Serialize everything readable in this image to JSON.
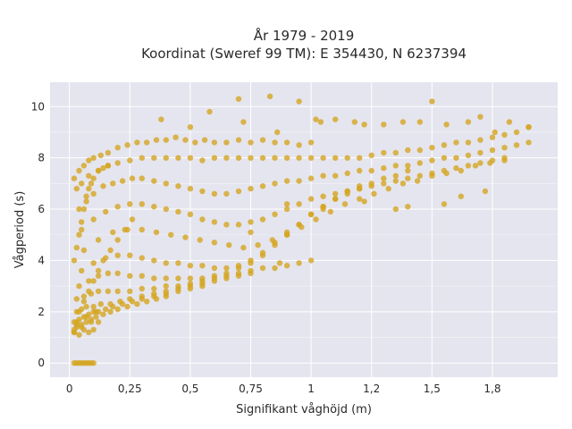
{
  "chart_data": {
    "type": "scatter",
    "title_lines": [
      "År 1979 - 2019",
      "Koordinat (Sweref 99 TM): E 354430, N 6237394"
    ],
    "xlabel": "Signifikant våghöjd (m)",
    "ylabel": "Vågperiod (s)",
    "xlim": [
      -0.08,
      2.02
    ],
    "ylim": [
      -0.55,
      10.95
    ],
    "x_ticks": [
      {
        "value": 0,
        "label": "0"
      },
      {
        "value": 0.25,
        "label": "0,25"
      },
      {
        "value": 0.5,
        "label": "0,5"
      },
      {
        "value": 0.75,
        "label": "0,75"
      },
      {
        "value": 1.0,
        "label": "1"
      },
      {
        "value": 1.25,
        "label": "1,2"
      },
      {
        "value": 1.5,
        "label": "1,5"
      },
      {
        "value": 1.75,
        "label": "1,8"
      }
    ],
    "y_ticks": [
      {
        "value": 0,
        "label": "0"
      },
      {
        "value": 2,
        "label": "2"
      },
      {
        "value": 4,
        "label": "4"
      },
      {
        "value": 6,
        "label": "6"
      },
      {
        "value": 8,
        "label": "8"
      },
      {
        "value": 10,
        "label": "10"
      }
    ],
    "grid": true,
    "marker_color": "#d4a520",
    "background_color": "#e5e5ef",
    "grid_color": "#ffffff",
    "series": [
      {
        "x": [
          0.02,
          0.03,
          0.04,
          0.05,
          0.06,
          0.07,
          0.08,
          0.09,
          0.1,
          0.02,
          0.04,
          0.06,
          0.08,
          0.1,
          0.12,
          0.03,
          0.05,
          0.07,
          0.09,
          0.11,
          0.02,
          0.04,
          0.06,
          0.08,
          0.1,
          0.13,
          0.16,
          0.2,
          0.24,
          0.28,
          0.32,
          0.36,
          0.4,
          0.44,
          0.48,
          0.52,
          0.56,
          0.6,
          0.65,
          0.7,
          0.75,
          0.8,
          0.85,
          0.9,
          0.95,
          1.0,
          0.03,
          0.05,
          0.08,
          0.12,
          0.16,
          0.2,
          0.25,
          0.3,
          0.35,
          0.4,
          0.45,
          0.5,
          0.55,
          0.6,
          0.65,
          0.7,
          0.75,
          0.8,
          0.85,
          0.9,
          0.95,
          1.0,
          1.05,
          1.1,
          1.15,
          1.2,
          1.25,
          1.3,
          1.35,
          1.4,
          1.45,
          1.5,
          1.55,
          1.6,
          1.65,
          1.7,
          1.75,
          1.8,
          1.85,
          1.9,
          0.04,
          0.07,
          0.1,
          0.14,
          0.18,
          0.22,
          0.26,
          0.3,
          0.35,
          0.4,
          0.45,
          0.5,
          0.55,
          0.6,
          0.65,
          0.7,
          0.75,
          0.8,
          0.85,
          0.9,
          0.95,
          1.0,
          1.05,
          1.1,
          1.15,
          1.2,
          1.25,
          1.3,
          1.35,
          1.4,
          1.45,
          1.5,
          1.55,
          1.6,
          1.65,
          1.7,
          1.75,
          1.8,
          1.85,
          1.9,
          0.05,
          0.1,
          0.15,
          0.2,
          0.25,
          0.3,
          0.35,
          0.4,
          0.45,
          0.5,
          0.55,
          0.6,
          0.65,
          0.7,
          0.75,
          0.8,
          0.85,
          0.9,
          0.95,
          1.0,
          1.05,
          1.1,
          1.15,
          1.2,
          1.25,
          1.3,
          1.35,
          1.4,
          1.45,
          1.5,
          1.55,
          1.6,
          1.65,
          1.7,
          1.75,
          1.8,
          0.06,
          0.12,
          0.18,
          0.24,
          0.3,
          0.36,
          0.42,
          0.48,
          0.54,
          0.6,
          0.66,
          0.72,
          0.78,
          0.84,
          0.9,
          0.96,
          1.02,
          1.08,
          1.14,
          1.2,
          1.26,
          1.32,
          1.38,
          1.44,
          1.5,
          1.56,
          1.62,
          1.68,
          1.74,
          1.8,
          0.05,
          0.1,
          0.15,
          0.2,
          0.25,
          0.3,
          0.35,
          0.4,
          0.45,
          0.5,
          0.55,
          0.6,
          0.65,
          0.7,
          0.75,
          0.8,
          0.85,
          0.9,
          0.95,
          1.0,
          1.05,
          1.1,
          1.15,
          1.2,
          1.25,
          1.3,
          1.35,
          1.4,
          0.04,
          0.08,
          0.12,
          0.16,
          0.2,
          0.25,
          0.3,
          0.35,
          0.4,
          0.45,
          0.5,
          0.55,
          0.6,
          0.65,
          0.7,
          0.75,
          0.8,
          0.85,
          0.9,
          0.95,
          1.0,
          1.05,
          1.1,
          1.15,
          1.2,
          0.03,
          0.06,
          0.09,
          0.12,
          0.16,
          0.2,
          0.25,
          0.3,
          0.35,
          0.4,
          0.45,
          0.5,
          0.55,
          0.6,
          0.65,
          0.7,
          0.75,
          0.8,
          0.85,
          0.9,
          0.95,
          1.0,
          0.03,
          0.05,
          0.07,
          0.1,
          0.13,
          0.17,
          0.21,
          0.25,
          0.3,
          0.35,
          0.4,
          0.45,
          0.5,
          0.55,
          0.6,
          0.65,
          0.7,
          0.75,
          0.02,
          0.04,
          0.06,
          0.08,
          0.1,
          0.12,
          0.15,
          0.18,
          0.22,
          0.26,
          0.3,
          0.35,
          0.4,
          0.45,
          0.5,
          0.55,
          0.02,
          0.03,
          0.05,
          0.07,
          0.09,
          0.11,
          0.14,
          0.17,
          0.2,
          0.24,
          0.28,
          0.32,
          0.36,
          0.4,
          0.02,
          0.03,
          0.04,
          0.06,
          0.08,
          0.1,
          0.12,
          0.14,
          0.17,
          0.2,
          0.23,
          0.26,
          0.02,
          0.03,
          0.04,
          0.05,
          0.06,
          0.07,
          0.08,
          0.09,
          0.1,
          0.12,
          0.14,
          0.16,
          0.38,
          0.5,
          0.58,
          0.7,
          0.72,
          0.83,
          0.86,
          0.95,
          1.02,
          1.04,
          1.1,
          1.18,
          1.22,
          1.3,
          1.38,
          1.45,
          1.5,
          1.56,
          1.65,
          1.7,
          1.76,
          1.82,
          1.9,
          0.75,
          0.87,
          0.9,
          1.05,
          1.22,
          1.35,
          1.4,
          1.55,
          1.62,
          1.72
        ],
        "y": [
          0,
          0,
          0,
          0,
          0,
          0,
          0,
          0,
          0,
          1.2,
          1.1,
          1.3,
          1.2,
          1.3,
          1.6,
          1.5,
          1.4,
          1.8,
          1.6,
          2.0,
          7.2,
          7.5,
          7.7,
          7.9,
          8.0,
          8.1,
          8.2,
          8.4,
          8.5,
          8.6,
          8.6,
          8.7,
          8.7,
          8.8,
          8.7,
          8.6,
          8.7,
          8.6,
          8.6,
          8.7,
          8.6,
          8.7,
          8.6,
          8.6,
          8.5,
          8.6,
          6.8,
          7.0,
          7.3,
          7.5,
          7.7,
          7.8,
          7.9,
          8.0,
          8.0,
          8.0,
          8.0,
          8.0,
          7.9,
          8.0,
          8.0,
          8.0,
          8.0,
          8.0,
          8.0,
          8.0,
          8.0,
          8.0,
          8.0,
          8.0,
          8.0,
          8.0,
          8.1,
          8.2,
          8.2,
          8.3,
          8.3,
          8.4,
          8.5,
          8.6,
          8.6,
          8.7,
          8.8,
          8.9,
          9.0,
          9.2,
          6.0,
          6.3,
          6.6,
          6.9,
          7.0,
          7.1,
          7.2,
          7.2,
          7.1,
          7.0,
          6.9,
          6.8,
          6.7,
          6.6,
          6.6,
          6.7,
          6.8,
          6.9,
          7.0,
          7.1,
          7.1,
          7.2,
          7.3,
          7.3,
          7.4,
          7.5,
          7.5,
          7.6,
          7.7,
          7.7,
          7.8,
          7.9,
          8.0,
          8.0,
          8.1,
          8.2,
          8.3,
          8.4,
          8.5,
          8.6,
          5.2,
          5.6,
          5.9,
          6.1,
          6.2,
          6.2,
          6.1,
          6.0,
          5.9,
          5.8,
          5.6,
          5.5,
          5.4,
          5.4,
          5.5,
          5.6,
          5.8,
          6.0,
          6.2,
          6.4,
          6.5,
          6.6,
          6.7,
          6.8,
          6.9,
          7.0,
          7.1,
          7.2,
          7.3,
          7.4,
          7.5,
          7.6,
          7.7,
          7.8,
          7.9,
          8.0,
          4.4,
          4.8,
          5.1,
          5.2,
          5.2,
          5.1,
          5.0,
          4.9,
          4.8,
          4.7,
          4.6,
          4.5,
          4.6,
          4.8,
          5.0,
          5.3,
          5.6,
          5.9,
          6.2,
          6.4,
          6.6,
          6.8,
          7.0,
          7.1,
          7.3,
          7.4,
          7.5,
          7.7,
          7.8,
          7.9,
          3.6,
          3.9,
          4.1,
          4.2,
          4.2,
          4.1,
          4.0,
          3.9,
          3.9,
          3.8,
          3.8,
          3.7,
          3.7,
          3.8,
          4.0,
          4.3,
          4.7,
          5.1,
          5.4,
          5.8,
          6.1,
          6.4,
          6.6,
          6.8,
          7.0,
          7.2,
          7.3,
          7.5,
          3.0,
          3.2,
          3.4,
          3.5,
          3.5,
          3.4,
          3.4,
          3.3,
          3.3,
          3.3,
          3.3,
          3.3,
          3.4,
          3.5,
          3.7,
          3.9,
          4.2,
          4.6,
          5.0,
          5.4,
          5.8,
          6.1,
          6.4,
          6.7,
          6.9,
          2.5,
          2.6,
          2.7,
          2.8,
          2.8,
          2.8,
          2.8,
          2.9,
          2.9,
          3.0,
          3.0,
          3.1,
          3.2,
          3.3,
          3.4,
          3.5,
          3.6,
          3.7,
          3.7,
          3.8,
          3.9,
          4.0,
          2.0,
          2.1,
          2.2,
          2.2,
          2.3,
          2.3,
          2.4,
          2.5,
          2.6,
          2.7,
          2.8,
          2.9,
          3.0,
          3.1,
          3.2,
          3.3,
          3.4,
          3.5,
          1.6,
          1.7,
          1.8,
          1.9,
          2.0,
          2.0,
          2.1,
          2.2,
          2.3,
          2.4,
          2.5,
          2.6,
          2.7,
          2.8,
          2.9,
          3.0,
          1.2,
          1.4,
          1.5,
          1.6,
          1.7,
          1.8,
          1.9,
          2.0,
          2.1,
          2.2,
          2.3,
          2.4,
          2.5,
          2.6,
          1.3,
          1.6,
          2.0,
          2.4,
          2.8,
          3.2,
          3.6,
          4.0,
          4.4,
          4.8,
          5.2,
          5.6,
          4.0,
          4.5,
          5.0,
          5.5,
          6.0,
          6.5,
          6.8,
          7.0,
          7.2,
          7.5,
          7.6,
          7.7,
          9.5,
          9.2,
          9.8,
          10.3,
          9.4,
          10.4,
          9.0,
          10.2,
          9.5,
          9.4,
          9.5,
          9.4,
          9.3,
          9.3,
          9.4,
          9.4,
          10.2,
          9.3,
          9.4,
          9.6,
          9.0,
          9.4,
          9.2,
          5.1,
          3.9,
          6.2,
          6.0,
          6.3,
          6.0,
          6.1,
          6.2,
          6.5,
          6.7
        ]
      }
    ]
  }
}
